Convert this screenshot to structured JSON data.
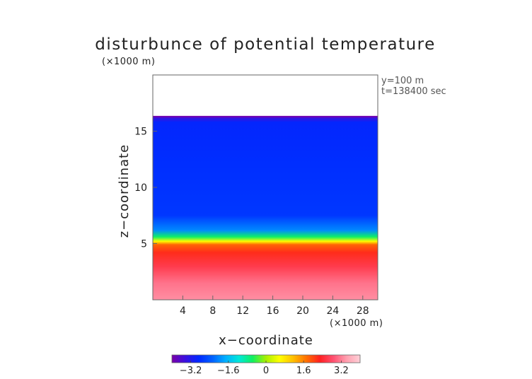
{
  "chart_data": {
    "type": "heatmap",
    "title": "disturbunce of potential temperature",
    "xlabel": "x−coordinate",
    "ylabel": "z−coordinate",
    "x_unit": "(×1000 m)",
    "y_unit": "(×1000 m)",
    "xlim": [
      0,
      30
    ],
    "ylim": [
      0,
      20
    ],
    "x_ticks": [
      4,
      8,
      12,
      16,
      20,
      24,
      28
    ],
    "x_tick_labels": [
      "4",
      "8",
      "12",
      "16",
      "20",
      "24",
      "28"
    ],
    "y_ticks": [
      5,
      10,
      15
    ],
    "y_tick_labels": [
      "5",
      "10",
      "15"
    ],
    "annotations": [
      "y=100 m",
      "t=138400 sec"
    ],
    "colorbar": {
      "range": [
        -4,
        4
      ],
      "ticks": [
        -3.2,
        -1.6,
        0,
        1.6,
        3.2
      ],
      "tick_labels": [
        "−3.2",
        "−1.6",
        "0",
        "1.6",
        "3.2"
      ],
      "colors": [
        "#7a00a8",
        "#3a10e0",
        "#0028ff",
        "#0060ff",
        "#00b0ff",
        "#00e8d8",
        "#10f060",
        "#a8f000",
        "#ffff00",
        "#ffc000",
        "#ff7000",
        "#ff2020",
        "#ff5070",
        "#ffa0b0",
        "#ffd0d8"
      ]
    },
    "data_top_z": 16.3,
    "layers": [
      {
        "z": 0.0,
        "value": 3.3
      },
      {
        "z": 1.5,
        "value": 3.1
      },
      {
        "z": 3.0,
        "value": 2.6
      },
      {
        "z": 4.2,
        "value": 2.2
      },
      {
        "z": 4.9,
        "value": 1.8
      },
      {
        "z": 5.2,
        "value": 0.6
      },
      {
        "z": 5.6,
        "value": -0.6
      },
      {
        "z": 6.2,
        "value": -2.0
      },
      {
        "z": 7.5,
        "value": -2.7
      },
      {
        "z": 12.0,
        "value": -2.8
      },
      {
        "z": 15.8,
        "value": -2.9
      },
      {
        "z": 16.3,
        "value": -3.6
      }
    ],
    "grid": false
  }
}
